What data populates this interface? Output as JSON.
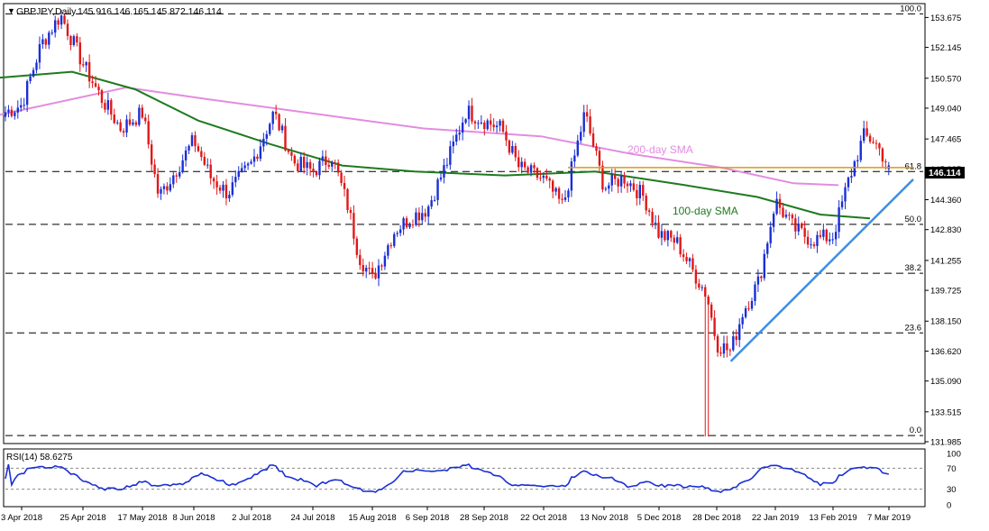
{
  "header": {
    "symbol": "GBPJPY,Daily",
    "ohlc": "145.916 146.165 145.872 146.114"
  },
  "price_axis": {
    "ticks": [
      "153.675",
      "152.145",
      "150.570",
      "149.040",
      "147.465",
      "145.935",
      "144.360",
      "142.830",
      "141.255",
      "139.725",
      "138.150",
      "136.620",
      "135.090",
      "133.515",
      "131.985"
    ],
    "current_price": "146.114"
  },
  "fib_levels": [
    {
      "label": "100.0",
      "price": 153.86
    },
    {
      "label": "61.8",
      "price": 145.8
    },
    {
      "label": "50.0",
      "price": 143.1
    },
    {
      "label": "38.2",
      "price": 140.6
    },
    {
      "label": "23.6",
      "price": 137.55
    },
    {
      "label": "0.0",
      "price": 132.3
    }
  ],
  "annotations": {
    "sma200": "200-day SMA",
    "sma100": "100-day SMA"
  },
  "rsi": {
    "label": "RSI(14) 58.6275",
    "ticks": [
      "100",
      "70",
      "30",
      "0"
    ]
  },
  "time_axis": [
    "3 Apr 2018",
    "25 Apr 2018",
    "17 May 2018",
    "8 Jun 2018",
    "2 Jul 2018",
    "24 Jul 2018",
    "15 Aug 2018",
    "6 Sep 2018",
    "28 Sep 2018",
    "22 Oct 2018",
    "13 Nov 2018",
    "5 Dec 2018",
    "28 Dec 2018",
    "22 Jan 2019",
    "13 Feb 2019",
    "7 Mar 2019"
  ],
  "colors": {
    "bull": "#1a2fd4",
    "bear": "#e01818",
    "sma200": "#e28ce0",
    "sma100": "#1e7a1e",
    "trendline": "#3d8fe6",
    "resistance": "#d99a16",
    "rsi": "#1a2fd4"
  },
  "chart_data": {
    "type": "candlestick",
    "symbol": "GBPJPY",
    "timeframe": "Daily",
    "last_ohlc": {
      "open": 145.916,
      "high": 146.165,
      "low": 145.872,
      "close": 146.114
    },
    "ylim": [
      131.985,
      154.2
    ],
    "anchors": [
      {
        "date": "3 Apr 2018",
        "close": 149.2
      },
      {
        "date": "10 Apr 2018",
        "close": 152.3
      },
      {
        "date": "17 Apr 2018",
        "close": 153.8
      },
      {
        "date": "25 Apr 2018",
        "close": 151.3
      },
      {
        "date": "2 May 2018",
        "close": 149.5
      },
      {
        "date": "9 May 2018",
        "close": 148.0
      },
      {
        "date": "17 May 2018",
        "close": 148.8
      },
      {
        "date": "24 May 2018",
        "close": 144.5
      },
      {
        "date": "30 May 2018",
        "close": 145.6
      },
      {
        "date": "8 Jun 2018",
        "close": 147.4
      },
      {
        "date": "15 Jun 2018",
        "close": 145.5
      },
      {
        "date": "22 Jun 2018",
        "close": 144.7
      },
      {
        "date": "2 Jul 2018",
        "close": 146.2
      },
      {
        "date": "10 Jul 2018",
        "close": 148.8
      },
      {
        "date": "17 Jul 2018",
        "close": 146.3
      },
      {
        "date": "24 Jul 2018",
        "close": 145.8
      },
      {
        "date": "31 Jul 2018",
        "close": 146.6
      },
      {
        "date": "6 Aug 2018",
        "close": 144.0
      },
      {
        "date": "10 Aug 2018",
        "close": 141.5
      },
      {
        "date": "15 Aug 2018",
        "close": 140.3
      },
      {
        "date": "24 Aug 2018",
        "close": 142.8
      },
      {
        "date": "31 Aug 2018",
        "close": 143.5
      },
      {
        "date": "6 Sep 2018",
        "close": 143.9
      },
      {
        "date": "14 Sep 2018",
        "close": 146.4
      },
      {
        "date": "21 Sep 2018",
        "close": 148.9
      },
      {
        "date": "28 Sep 2018",
        "close": 148.4
      },
      {
        "date": "5 Oct 2018",
        "close": 148.0
      },
      {
        "date": "12 Oct 2018",
        "close": 146.0
      },
      {
        "date": "22 Oct 2018",
        "close": 145.4
      },
      {
        "date": "29 Oct 2018",
        "close": 144.0
      },
      {
        "date": "6 Nov 2018",
        "close": 148.8
      },
      {
        "date": "13 Nov 2018",
        "close": 145.0
      },
      {
        "date": "21 Nov 2018",
        "close": 145.5
      },
      {
        "date": "29 Nov 2018",
        "close": 144.5
      },
      {
        "date": "5 Dec 2018",
        "close": 142.6
      },
      {
        "date": "12 Dec 2018",
        "close": 142.2
      },
      {
        "date": "19 Dec 2018",
        "close": 140.6
      },
      {
        "date": "24 Dec 2018",
        "close": 139.5
      },
      {
        "date": "28 Dec 2018",
        "close": 137.0
      },
      {
        "date": "3 Jan 2019",
        "close": 136.6
      },
      {
        "date": "8 Jan 2019",
        "close": 138.6
      },
      {
        "date": "15 Jan 2019",
        "close": 140.2
      },
      {
        "date": "22 Jan 2019",
        "close": 144.3
      },
      {
        "date": "29 Jan 2019",
        "close": 142.9
      },
      {
        "date": "5 Feb 2019",
        "close": 142.3
      },
      {
        "date": "13 Feb 2019",
        "close": 142.5
      },
      {
        "date": "19 Feb 2019",
        "close": 145.3
      },
      {
        "date": "25 Feb 2019",
        "close": 147.6
      },
      {
        "date": "1 Mar 2019",
        "close": 147.4
      },
      {
        "date": "7 Mar 2019",
        "close": 146.114
      }
    ],
    "sma200": [
      [
        0,
        148.7
      ],
      [
        140,
        150.1
      ],
      [
        230,
        149.5
      ],
      [
        470,
        148.0
      ],
      [
        600,
        147.6
      ],
      [
        700,
        146.7
      ],
      [
        800,
        146.0
      ],
      [
        880,
        145.2
      ],
      [
        930,
        145.1
      ]
    ],
    "sma100": [
      [
        0,
        150.6
      ],
      [
        80,
        150.9
      ],
      [
        150,
        150.0
      ],
      [
        220,
        148.4
      ],
      [
        300,
        147.2
      ],
      [
        380,
        146.1
      ],
      [
        460,
        145.8
      ],
      [
        560,
        145.6
      ],
      [
        660,
        145.8
      ],
      [
        760,
        145.1
      ],
      [
        840,
        144.5
      ],
      [
        910,
        143.6
      ],
      [
        965,
        143.4
      ]
    ],
    "trendline": {
      "from": {
        "date": "3 Jan 2019",
        "price": 136.1
      },
      "to": {
        "date": "7 Mar 2019",
        "price": 145.4
      }
    },
    "resistance_price": 146.0,
    "rsi": {
      "last": 58.6275,
      "levels": [
        70,
        30
      ],
      "range": [
        0,
        100
      ]
    }
  }
}
